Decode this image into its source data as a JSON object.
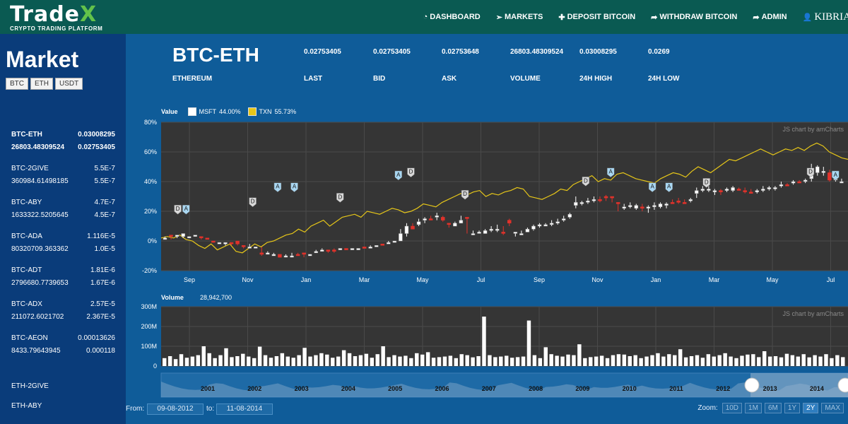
{
  "app": {
    "brand_main": "Trade",
    "brand_accent": "X",
    "brand_sub": "CRYPTO TRADING PLATFORM"
  },
  "nav": [
    {
      "label": "DASHBOARD",
      "icon": "dashboard-icon",
      "glyph": "◔"
    },
    {
      "label": "MARKETS",
      "icon": "paper-plane-icon",
      "glyph": "➢"
    },
    {
      "label": "DEPOSIT BITCOIN",
      "icon": "plus-icon",
      "glyph": "✚"
    },
    {
      "label": "WITHDRAW BITCOIN",
      "icon": "share-icon",
      "glyph": "➦"
    },
    {
      "label": "ADMIN",
      "icon": "share-icon",
      "glyph": "➦"
    },
    {
      "label": "KIBRIA",
      "icon": "user-icon",
      "glyph": "👤"
    }
  ],
  "sidebar": {
    "title": "Market",
    "filters": [
      "BTC",
      "ETH",
      "USDT"
    ],
    "markets": [
      {
        "name": "BTC-ETH",
        "price": "0.03008295",
        "volume": "26803.48309524",
        "last": "0.02753405",
        "active": true
      },
      {
        "name": "BTC-2GIVE",
        "price": "5.5E-7",
        "volume": "360984.61498185",
        "last": "5.5E-7"
      },
      {
        "name": "BTC-ABY",
        "price": "4.7E-7",
        "volume": "1633322.5205645",
        "last": "4.5E-7"
      },
      {
        "name": "BTC-ADA",
        "price": "1.116E-5",
        "volume": "80320709.363362",
        "last": "1.0E-5"
      },
      {
        "name": "BTC-ADT",
        "price": "1.81E-6",
        "volume": "2796680.7739653",
        "last": "1.67E-6"
      },
      {
        "name": "BTC-ADX",
        "price": "2.57E-5",
        "volume": "211072.6021702",
        "last": "2.367E-5"
      },
      {
        "name": "BTC-AEON",
        "price": "0.00013626",
        "volume": "8433.79643945",
        "last": "0.000118"
      }
    ],
    "extra": [
      "ETH-2GIVE",
      "ETH-ABY"
    ]
  },
  "ticker": {
    "symbol": "BTC-ETH",
    "name": "ETHEREUM"
  },
  "stats": [
    {
      "value": "0.02753405",
      "label": "LAST"
    },
    {
      "value": "0.02753405",
      "label": "BID"
    },
    {
      "value": "0.02753648",
      "label": "ASK"
    },
    {
      "value": "26803.48309524",
      "label": "VOLUME"
    },
    {
      "value": "0.03008295",
      "label": "24H HIGH"
    },
    {
      "value": "0.0269",
      "label": "24H LOW"
    }
  ],
  "legend": {
    "label": "Value",
    "items": [
      {
        "name": "MSFT",
        "value": "44.00%",
        "color": "#ffffff"
      },
      {
        "name": "TXN",
        "value": "55.73%",
        "color": "#e6c619"
      }
    ]
  },
  "colors": {
    "up": "#ffffff",
    "down": "#e0322b",
    "txn": "#e6c619",
    "panel": "#353535",
    "annA": "#a9d7f2",
    "annD": "#d8d8d8"
  },
  "chart_data": {
    "type": "candlestick",
    "credit": "JS chart by amCharts",
    "ylabels": [
      "80%",
      "60%",
      "40%",
      "20%",
      "0%",
      "-20%"
    ],
    "ylim": [
      -20,
      80
    ],
    "xlabels": [
      "Sep",
      "Nov",
      "Jan",
      "Mar",
      "May",
      "Jul",
      "Sep",
      "Nov",
      "Jan",
      "Mar",
      "May",
      "Jul"
    ],
    "txn_series": [
      2,
      3,
      2,
      4,
      1,
      0,
      -3,
      -5,
      -2,
      -6,
      -4,
      -2,
      -7,
      -8,
      -5,
      -2,
      -4,
      -1,
      0,
      2,
      4,
      5,
      8,
      6,
      10,
      12,
      14,
      10,
      13,
      16,
      17,
      18,
      16,
      20,
      19,
      18,
      20,
      22,
      21,
      19,
      20,
      22,
      25,
      24,
      23,
      26,
      28,
      30,
      32,
      31,
      33,
      34,
      30,
      32,
      31,
      33,
      34,
      36,
      35,
      30,
      29,
      28,
      30,
      32,
      35,
      34,
      38,
      40,
      42,
      44,
      40,
      42,
      41,
      45,
      46,
      44,
      42,
      41,
      40,
      39,
      42,
      44,
      46,
      45,
      43,
      47,
      50,
      48,
      46,
      49,
      52,
      55,
      54,
      56,
      58,
      60,
      62,
      60,
      58,
      60,
      62,
      61,
      63,
      61,
      64,
      66,
      64,
      60,
      58,
      56,
      55
    ],
    "candles": [
      [
        1,
        1,
        2,
        3,
        1,
        1
      ],
      [
        2,
        3,
        4,
        2,
        1,
        2
      ],
      [
        3,
        4,
        4,
        3,
        2,
        1
      ],
      [
        4,
        3,
        5,
        3,
        2,
        1
      ],
      [
        5,
        2,
        3,
        2,
        2,
        1
      ],
      [
        6,
        4,
        4,
        3,
        3,
        1
      ],
      [
        7,
        3,
        3,
        1,
        1,
        0
      ],
      [
        8,
        2,
        2,
        1,
        1,
        0
      ],
      [
        9,
        0,
        0,
        -1,
        -1,
        0
      ],
      [
        10,
        -1,
        -2,
        -1,
        -2,
        1
      ],
      [
        11,
        -2,
        -1,
        -3,
        -3,
        1
      ],
      [
        12,
        -1,
        -1,
        -3,
        -3,
        0
      ],
      [
        13,
        0,
        -2,
        -2,
        -3,
        0
      ],
      [
        14,
        -3,
        -3,
        -5,
        -5,
        0
      ],
      [
        15,
        -4,
        -4,
        -2,
        -5,
        1
      ],
      [
        16,
        -4,
        -4,
        -4,
        -4,
        1
      ],
      [
        17,
        -9,
        -8,
        -4,
        -10,
        0
      ],
      [
        18,
        -8,
        -9,
        -7,
        -9,
        1
      ],
      [
        19,
        -9,
        -10,
        -8,
        -10,
        1
      ],
      [
        20,
        -11,
        -9,
        -9,
        -11,
        0
      ],
      [
        21,
        -10,
        -10,
        -9,
        -11,
        1
      ],
      [
        22,
        -10,
        -10,
        -8,
        -11,
        1
      ],
      [
        23,
        -9,
        -9,
        -8,
        -9,
        0
      ],
      [
        24,
        -8,
        -9,
        -8,
        -11,
        0
      ],
      [
        25,
        -10,
        -9,
        -9,
        -10,
        1
      ],
      [
        26,
        -8,
        -7,
        -6,
        -8,
        1
      ],
      [
        27,
        -7,
        -6,
        -5,
        -7,
        1
      ],
      [
        28,
        -6,
        -7,
        -6,
        -8,
        0
      ],
      [
        29,
        -6,
        -7,
        -5,
        -8,
        0
      ],
      [
        30,
        -6,
        -5,
        -5,
        -6,
        1
      ],
      [
        31,
        -5,
        -6,
        -5,
        -6,
        0
      ],
      [
        32,
        -6,
        -5,
        -5,
        -6,
        1
      ],
      [
        33,
        -5,
        -6,
        -5,
        -6,
        1
      ],
      [
        34,
        -4,
        -5,
        -4,
        -5,
        0
      ],
      [
        35,
        -4,
        -4,
        -3,
        -5,
        1
      ],
      [
        36,
        -3,
        -4,
        -3,
        -4,
        1
      ],
      [
        37,
        -2,
        -3,
        -2,
        -3,
        0
      ],
      [
        38,
        -1,
        -2,
        0,
        -2,
        1
      ],
      [
        39,
        0,
        -1,
        0,
        -1,
        1
      ],
      [
        40,
        5,
        0,
        8,
        0,
        1
      ],
      [
        41,
        10,
        5,
        12,
        3,
        1
      ],
      [
        42,
        8,
        10,
        12,
        8,
        0
      ],
      [
        43,
        13,
        11,
        15,
        10,
        1
      ],
      [
        44,
        14,
        15,
        16,
        12,
        1
      ],
      [
        45,
        15,
        15,
        17,
        14,
        0
      ],
      [
        46,
        17,
        16,
        19,
        14,
        1
      ],
      [
        47,
        16,
        14,
        17,
        13,
        0
      ],
      [
        48,
        12,
        12,
        10,
        9,
        0
      ],
      [
        49,
        12,
        10,
        13,
        10,
        1
      ],
      [
        50,
        14,
        12,
        17,
        12,
        1
      ],
      [
        51,
        16,
        16,
        10,
        5,
        0
      ],
      [
        52,
        5,
        5,
        7,
        4,
        1
      ],
      [
        53,
        6,
        6,
        7,
        5,
        1
      ],
      [
        54,
        7,
        5,
        8,
        5,
        1
      ],
      [
        55,
        8,
        7,
        10,
        6,
        1
      ],
      [
        56,
        8,
        8,
        11,
        6,
        1
      ],
      [
        57,
        6,
        6,
        10,
        4,
        0
      ],
      [
        58,
        14,
        12,
        15,
        10,
        0
      ],
      [
        59,
        6,
        6,
        3,
        4,
        1
      ],
      [
        60,
        5,
        5,
        7,
        4,
        1
      ],
      [
        61,
        8,
        6,
        9,
        6,
        1
      ],
      [
        62,
        10,
        8,
        11,
        7,
        1
      ],
      [
        63,
        11,
        10,
        12,
        9,
        1
      ],
      [
        64,
        11,
        10,
        12,
        10,
        1
      ],
      [
        65,
        12,
        11,
        14,
        10,
        1
      ],
      [
        66,
        13,
        12,
        15,
        11,
        1
      ],
      [
        67,
        15,
        14,
        17,
        13,
        1
      ],
      [
        68,
        18,
        16,
        19,
        15,
        1
      ],
      [
        69,
        26,
        24,
        30,
        22,
        1
      ],
      [
        70,
        26,
        26,
        27,
        24,
        1
      ],
      [
        71,
        27,
        27,
        29,
        25,
        1
      ],
      [
        72,
        28,
        27,
        30,
        26,
        1
      ],
      [
        73,
        28,
        28,
        30,
        26,
        0
      ],
      [
        74,
        30,
        29,
        31,
        27,
        0
      ],
      [
        75,
        30,
        29,
        29,
        26,
        0
      ],
      [
        76,
        26,
        26,
        22,
        20,
        0
      ],
      [
        77,
        23,
        22,
        25,
        21,
        1
      ],
      [
        78,
        24,
        23,
        26,
        22,
        1
      ],
      [
        79,
        24,
        22,
        25,
        21,
        1
      ],
      [
        80,
        23,
        22,
        25,
        20,
        0
      ],
      [
        81,
        23,
        22,
        24,
        19,
        1
      ],
      [
        82,
        24,
        23,
        26,
        21,
        1
      ],
      [
        83,
        25,
        23,
        26,
        22,
        1
      ],
      [
        84,
        25,
        24,
        26,
        22,
        1
      ],
      [
        85,
        26,
        26,
        28,
        25,
        0
      ],
      [
        86,
        27,
        26,
        29,
        25,
        0
      ],
      [
        87,
        26,
        26,
        28,
        25,
        0
      ],
      [
        88,
        28,
        27,
        29,
        26,
        1
      ],
      [
        89,
        34,
        32,
        36,
        29,
        1
      ],
      [
        90,
        35,
        34,
        37,
        33,
        1
      ],
      [
        91,
        35,
        35,
        37,
        33,
        1
      ],
      [
        92,
        34,
        33,
        35,
        31,
        1
      ],
      [
        93,
        34,
        33,
        35,
        31,
        0
      ],
      [
        94,
        35,
        34,
        36,
        33,
        1
      ],
      [
        95,
        36,
        34,
        37,
        33,
        1
      ],
      [
        96,
        35,
        35,
        36,
        34,
        0
      ],
      [
        97,
        34,
        34,
        36,
        32,
        0
      ],
      [
        98,
        33,
        33,
        35,
        32,
        0
      ],
      [
        99,
        34,
        33,
        35,
        32,
        1
      ],
      [
        100,
        35,
        34,
        37,
        33,
        1
      ],
      [
        101,
        35,
        36,
        37,
        34,
        1
      ],
      [
        102,
        36,
        36,
        37,
        34,
        1
      ],
      [
        103,
        38,
        37,
        40,
        36,
        1
      ],
      [
        104,
        38,
        38,
        39,
        37,
        0
      ],
      [
        105,
        40,
        39,
        41,
        38,
        1
      ],
      [
        106,
        40,
        40,
        41,
        39,
        0
      ],
      [
        107,
        41,
        41,
        42,
        39,
        1
      ],
      [
        108,
        47,
        42,
        52,
        40,
        1
      ],
      [
        109,
        50,
        46,
        51,
        44,
        1
      ],
      [
        110,
        47,
        46,
        50,
        44,
        1
      ],
      [
        111,
        46,
        41,
        48,
        40,
        0
      ],
      [
        112,
        42,
        42,
        44,
        40,
        1
      ],
      [
        113,
        40,
        40,
        42,
        39,
        1
      ]
    ],
    "annotations": [
      [
        4,
        "D",
        18
      ],
      [
        6,
        "A",
        18
      ],
      [
        22,
        "D",
        23
      ],
      [
        28,
        "A",
        33
      ],
      [
        32,
        "A",
        33
      ],
      [
        43,
        "D",
        26
      ],
      [
        57,
        "A",
        41
      ],
      [
        60,
        "D",
        43
      ],
      [
        73,
        "D",
        28
      ],
      [
        102,
        "D",
        37
      ],
      [
        108,
        "A",
        43
      ],
      [
        118,
        "A",
        33
      ],
      [
        122,
        "A",
        33
      ],
      [
        131,
        "D",
        36
      ],
      [
        156,
        "D",
        43
      ],
      [
        162,
        "A",
        41
      ]
    ],
    "volume_label": "Volume",
    "volume_value": "28,942,700",
    "volume_ylabels": [
      "300M",
      "200M",
      "100M",
      "0"
    ],
    "volume_max": 300,
    "volumes": [
      40,
      50,
      35,
      60,
      42,
      48,
      55,
      100,
      65,
      40,
      55,
      90,
      45,
      50,
      62,
      48,
      40,
      98,
      55,
      42,
      50,
      65,
      48,
      42,
      55,
      92,
      48,
      55,
      65,
      58,
      42,
      48,
      80,
      65,
      50,
      55,
      62,
      42,
      60,
      100,
      45,
      55,
      48,
      52,
      40,
      65,
      58,
      70,
      42,
      45,
      48,
      52,
      40,
      60,
      55,
      44,
      50,
      250,
      55,
      45,
      48,
      52,
      42,
      45,
      48,
      230,
      55,
      40,
      95,
      60,
      52,
      48,
      58,
      55,
      110,
      40,
      45,
      48,
      52,
      40,
      55,
      60,
      58,
      50,
      55,
      40,
      48,
      55,
      65,
      48,
      60,
      55,
      85,
      44,
      50,
      55,
      42,
      60,
      48,
      55,
      65,
      48,
      40,
      52,
      58,
      60,
      45,
      75,
      48,
      50,
      44,
      62,
      55,
      48,
      60,
      44,
      55,
      48,
      60,
      40,
      55,
      45
    ],
    "scroll_labels": [
      "2001",
      "2002",
      "2003",
      "2004",
      "2005",
      "2006",
      "2007",
      "2008",
      "2009",
      "2010",
      "2011",
      "2012",
      "2013",
      "2014"
    ]
  },
  "footer": {
    "from_label": "From:",
    "from_value": "09-08-2012",
    "to_label": "to:",
    "to_value": "11-08-2014",
    "zoom_label": "Zoom:",
    "zoom_options": [
      "10D",
      "1M",
      "6M",
      "1Y",
      "2Y",
      "MAX"
    ],
    "zoom_selected": "2Y"
  }
}
